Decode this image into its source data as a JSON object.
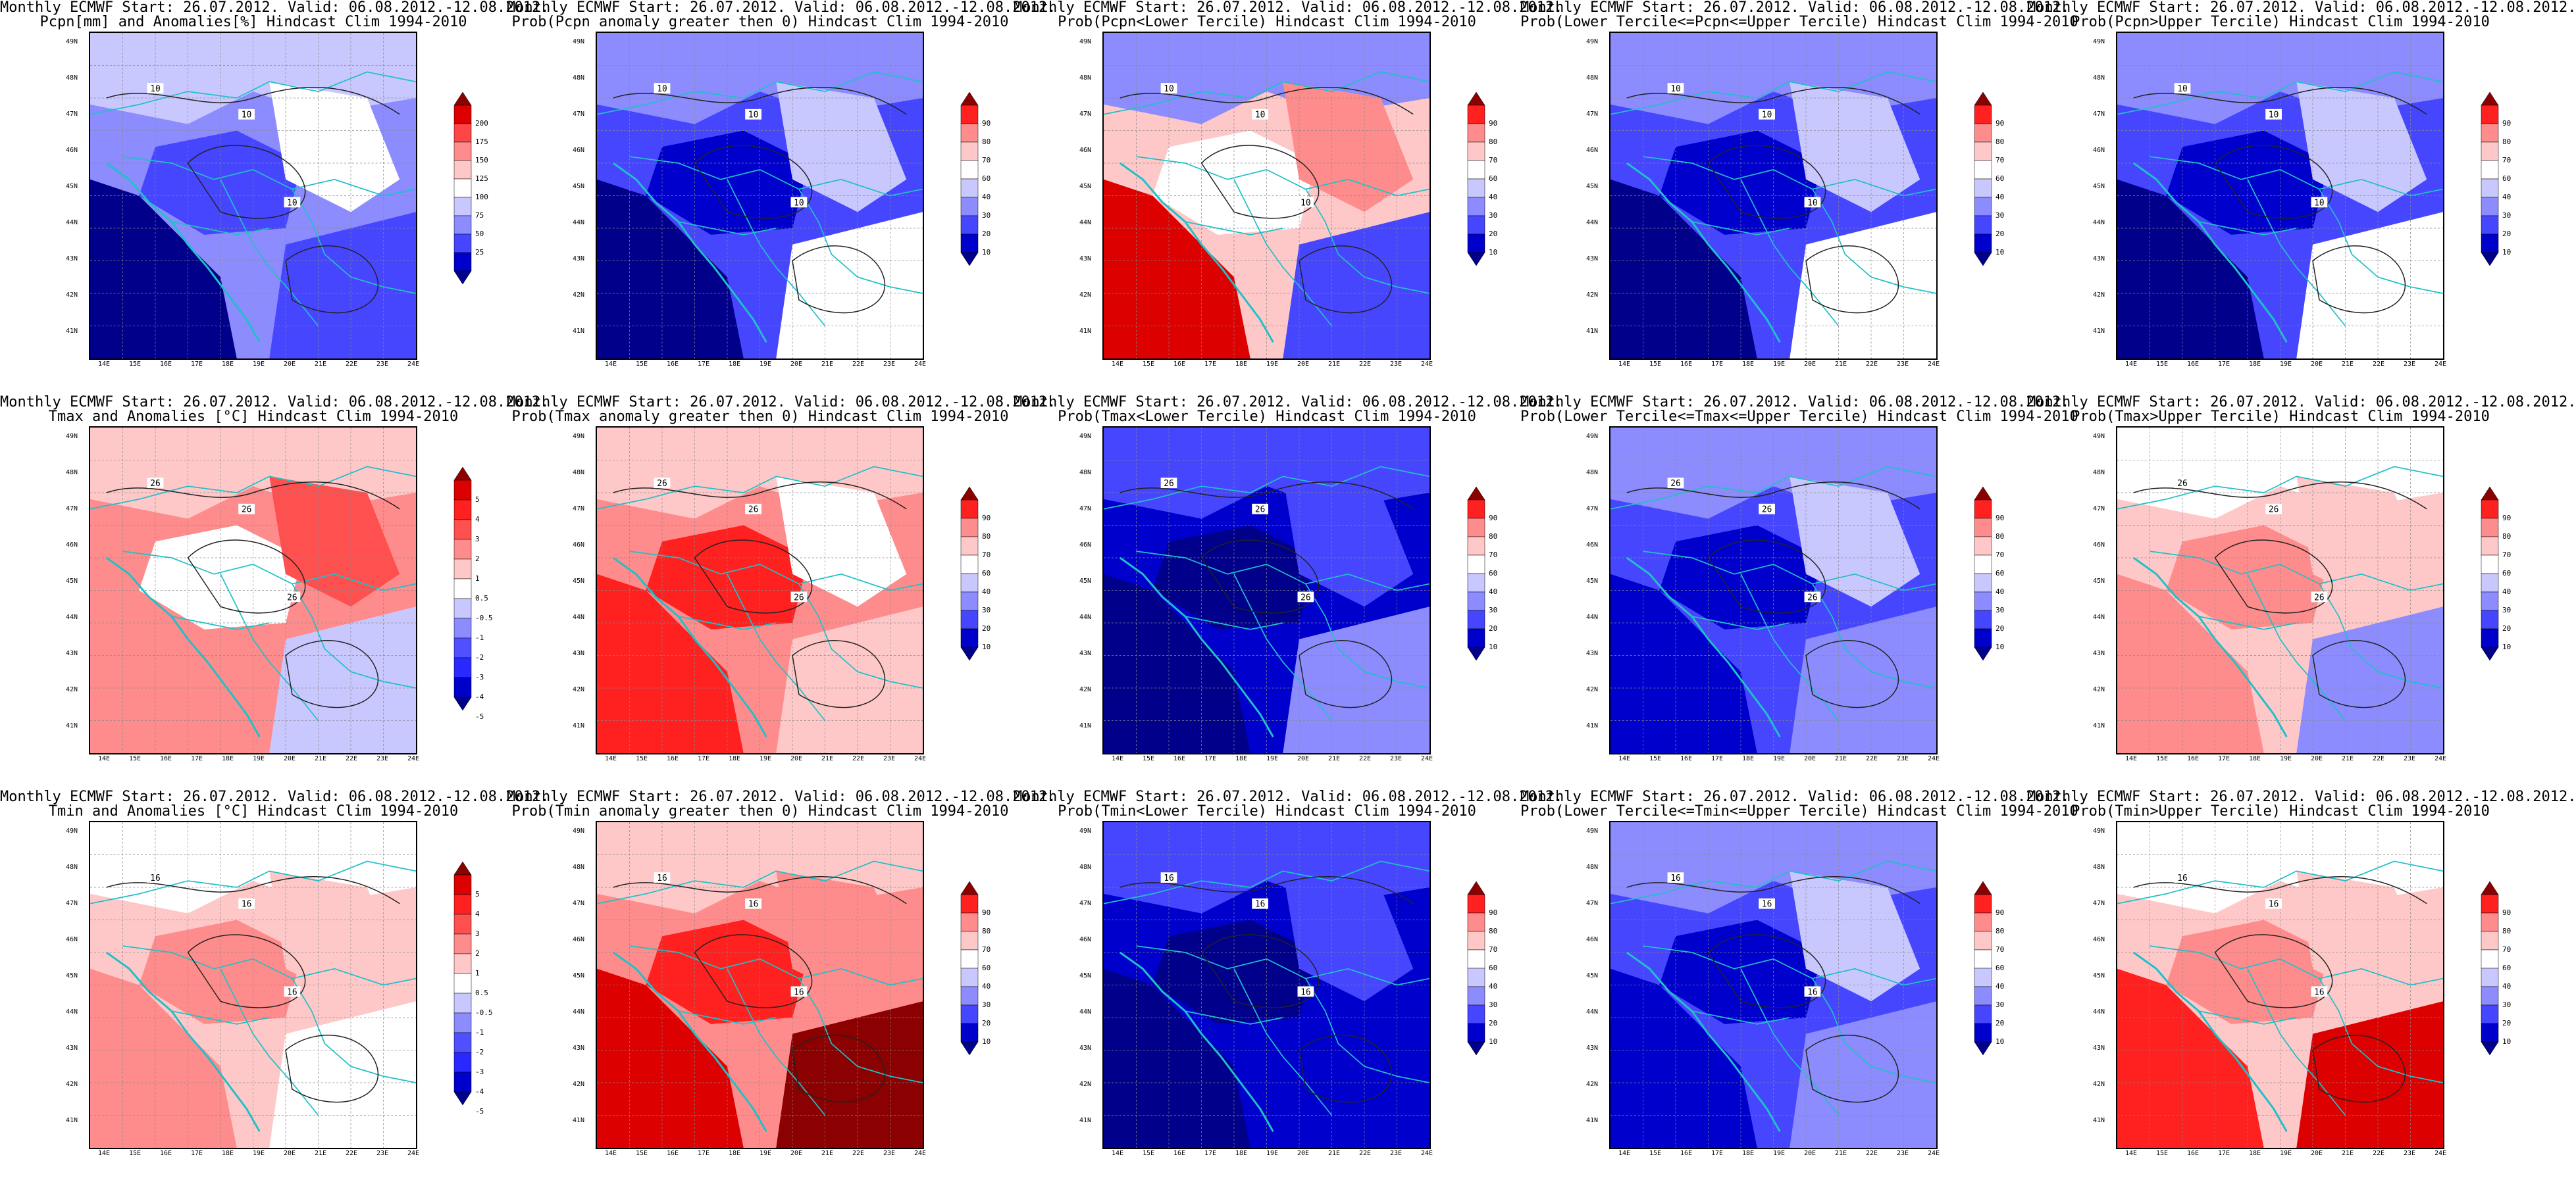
{
  "title_prefix": "Monthly ECMWF Start: 26.07.2012. Valid: 06.08.2012.-12.08.2012.",
  "lat_ticks": [
    "49N",
    "48N",
    "47N",
    "46N",
    "45N",
    "44N",
    "43N",
    "42N",
    "41N"
  ],
  "lon_ticks": [
    "14E",
    "15E",
    "16E",
    "17E",
    "18E",
    "19E",
    "20E",
    "21E",
    "22E",
    "23E",
    "24E"
  ],
  "colorbars": {
    "pcpn": {
      "levels": [
        "25",
        "50",
        "75",
        "100",
        "125",
        "150",
        "175",
        "200"
      ],
      "colors": [
        "#00008b",
        "#0000cd",
        "#4646ff",
        "#8c8cff",
        "#c8c8ff",
        "#ffffff",
        "#ffc8c8",
        "#ff8c8c",
        "#ff4646",
        "#dc0000",
        "#8b0000"
      ]
    },
    "temp": {
      "levels": [
        "-5",
        "-4",
        "-3",
        "-2",
        "-1",
        "-0.5",
        "0.5",
        "1",
        "2",
        "3",
        "4",
        "5"
      ],
      "colors": [
        "#00008b",
        "#0000cd",
        "#2828ff",
        "#5050ff",
        "#8c8cff",
        "#c8c8ff",
        "#ffffff",
        "#ffc8c8",
        "#ff8c8c",
        "#ff5050",
        "#ff2020",
        "#dc0000",
        "#8b0000"
      ]
    },
    "prob": {
      "levels": [
        "10",
        "20",
        "30",
        "40",
        "60",
        "70",
        "80",
        "90"
      ],
      "colors": [
        "#00008b",
        "#0000cd",
        "#4646ff",
        "#8c8cff",
        "#c8c8ff",
        "#ffffff",
        "#ffc8c8",
        "#ff8c8c",
        "#ff2020",
        "#8b0000"
      ]
    }
  },
  "panels": [
    {
      "subtitle": "Pcpn[mm] and Anomalies[%] Hindcast Clim 1994-2010",
      "cbar": "pcpn",
      "base": "#8c8cff",
      "patches": [
        "#c8c8ff",
        "#4646ff",
        "#ffffff",
        "#00008b",
        "#4646ff"
      ],
      "contour": "10"
    },
    {
      "subtitle": "Prob(Pcpn anomaly greater then 0) Hindcast Clim 1994-2010",
      "cbar": "prob",
      "base": "#4646ff",
      "patches": [
        "#8c8cff",
        "#0000cd",
        "#c8c8ff",
        "#00008b",
        "#ffffff"
      ],
      "contour": "10"
    },
    {
      "subtitle": "Prob(Pcpn<Lower Tercile) Hindcast Clim 1994-2010",
      "cbar": "prob",
      "base": "#ffc8c8",
      "patches": [
        "#8c8cff",
        "#ffffff",
        "#ff8c8c",
        "#dc0000",
        "#4646ff"
      ],
      "contour": "10"
    },
    {
      "subtitle": "Prob(Lower Tercile<=Pcpn<=Upper Tercile) Hindcast Clim 1994-2010",
      "cbar": "prob",
      "base": "#4646ff",
      "patches": [
        "#8c8cff",
        "#0000cd",
        "#c8c8ff",
        "#00008b",
        "#ffffff"
      ],
      "contour": "10"
    },
    {
      "subtitle": "Prob(Pcpn>Upper Tercile) Hindcast Clim 1994-2010",
      "cbar": "prob",
      "base": "#4646ff",
      "patches": [
        "#8c8cff",
        "#0000cd",
        "#c8c8ff",
        "#00008b",
        "#ffffff"
      ],
      "contour": "10"
    },
    {
      "subtitle": "Tmax and Anomalies [°C] Hindcast Clim 1994-2010",
      "cbar": "temp",
      "base": "#ff8c8c",
      "patches": [
        "#ffc8c8",
        "#ffffff",
        "#ff5050",
        "#ff8c8c",
        "#c8c8ff"
      ],
      "contour": "26"
    },
    {
      "subtitle": "Prob(Tmax anomaly greater then 0) Hindcast Clim 1994-2010",
      "cbar": "prob",
      "base": "#ff8c8c",
      "patches": [
        "#ffc8c8",
        "#ff2020",
        "#ffffff",
        "#ff2020",
        "#ffc8c8"
      ],
      "contour": "26"
    },
    {
      "subtitle": "Prob(Tmax<Lower Tercile) Hindcast Clim 1994-2010",
      "cbar": "prob",
      "base": "#0000cd",
      "patches": [
        "#4646ff",
        "#00008b",
        "#4646ff",
        "#00008b",
        "#8c8cff"
      ],
      "contour": "26"
    },
    {
      "subtitle": "Prob(Lower Tercile<=Tmax<=Upper Tercile) Hindcast Clim 1994-2010",
      "cbar": "prob",
      "base": "#4646ff",
      "patches": [
        "#8c8cff",
        "#0000cd",
        "#c8c8ff",
        "#0000cd",
        "#8c8cff"
      ],
      "contour": "26"
    },
    {
      "subtitle": "Prob(Tmax>Upper Tercile) Hindcast Clim 1994-2010",
      "cbar": "prob",
      "base": "#ffc8c8",
      "patches": [
        "#ffffff",
        "#ff8c8c",
        "#ffc8c8",
        "#ff8c8c",
        "#8c8cff"
      ],
      "contour": "26"
    },
    {
      "subtitle": "Tmin and Anomalies [°C] Hindcast Clim 1994-2010",
      "cbar": "temp",
      "base": "#ffc8c8",
      "patches": [
        "#ffffff",
        "#ff8c8c",
        "#ffc8c8",
        "#ff8c8c",
        "#ffffff"
      ],
      "contour": "16"
    },
    {
      "subtitle": "Prob(Tmin anomaly greater then 0) Hindcast Clim 1994-2010",
      "cbar": "prob",
      "base": "#ff8c8c",
      "patches": [
        "#ffc8c8",
        "#ff2020",
        "#ff8c8c",
        "#dc0000",
        "#8b0000"
      ],
      "contour": "16"
    },
    {
      "subtitle": "Prob(Tmin<Lower Tercile) Hindcast Clim 1994-2010",
      "cbar": "prob",
      "base": "#0000cd",
      "patches": [
        "#4646ff",
        "#00008b",
        "#4646ff",
        "#00008b",
        "#0000cd"
      ],
      "contour": "16"
    },
    {
      "subtitle": "Prob(Lower Tercile<=Tmin<=Upper Tercile) Hindcast Clim 1994-2010",
      "cbar": "prob",
      "base": "#4646ff",
      "patches": [
        "#8c8cff",
        "#0000cd",
        "#c8c8ff",
        "#0000cd",
        "#8c8cff"
      ],
      "contour": "16"
    },
    {
      "subtitle": "Prob(Tmin>Upper Tercile) Hindcast Clim 1994-2010",
      "cbar": "prob",
      "base": "#ffc8c8",
      "patches": [
        "#ffffff",
        "#ff8c8c",
        "#ffc8c8",
        "#ff2020",
        "#dc0000"
      ],
      "contour": "16"
    }
  ]
}
